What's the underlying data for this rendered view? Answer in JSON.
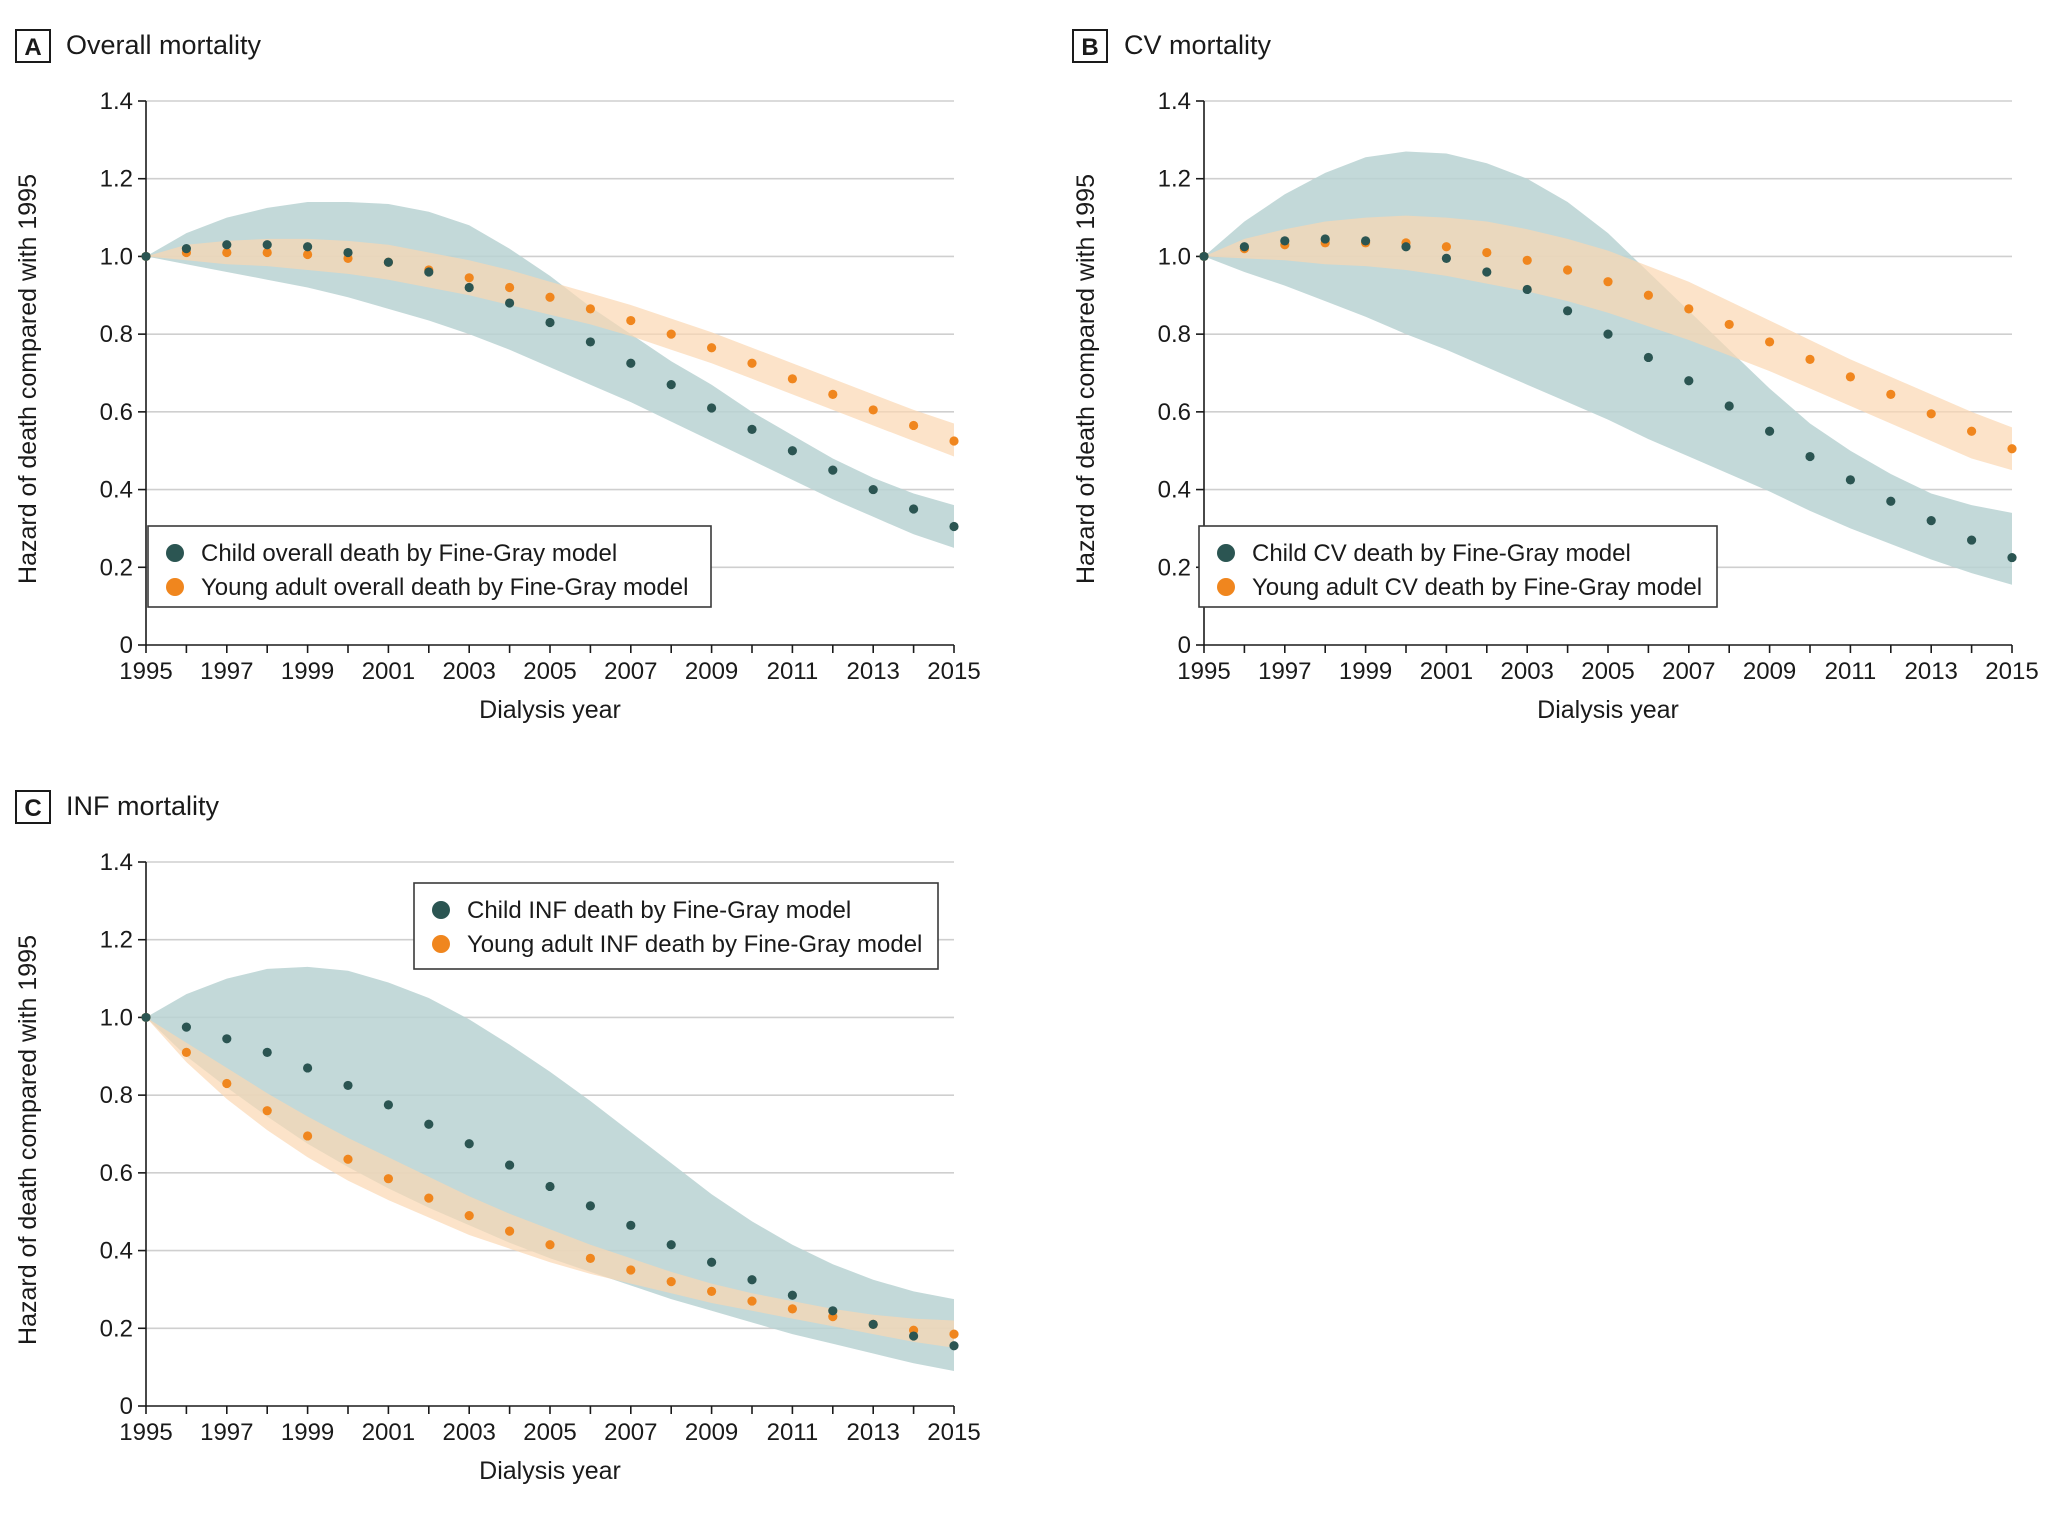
{
  "colors": {
    "child": "#2b5552",
    "child_band": "#b9d2d2",
    "young_adult": "#f0861e",
    "young_adult_band": "#fbd7b2"
  },
  "chart_data": [
    {
      "type": "scatter",
      "panel_label": "A",
      "title": "Overall mortality",
      "xlabel": "Dialysis year",
      "ylabel": "Hazard of death compared with 1995",
      "xlim": [
        1995,
        2015
      ],
      "ylim": [
        0,
        1.4
      ],
      "xticks": [
        1995,
        1997,
        1999,
        2001,
        2003,
        2005,
        2007,
        2009,
        2011,
        2013,
        2015
      ],
      "yticks": [
        0,
        0.2,
        0.4,
        0.6,
        0.8,
        1.0,
        1.2,
        1.4
      ],
      "ytick_labels": [
        "0",
        "0.2",
        "0.4",
        "0.6",
        "0.8",
        "1.0",
        "1.2",
        "1.4"
      ],
      "legend_position": "bottom-left",
      "x": [
        1995,
        1996,
        1997,
        1998,
        1999,
        2000,
        2001,
        2002,
        2003,
        2004,
        2005,
        2006,
        2007,
        2008,
        2009,
        2010,
        2011,
        2012,
        2013,
        2014,
        2015
      ],
      "series": [
        {
          "name": "Child overall death by Fine-Gray model",
          "color_key": "child",
          "values": [
            1.0,
            1.02,
            1.03,
            1.03,
            1.025,
            1.01,
            0.985,
            0.96,
            0.92,
            0.88,
            0.83,
            0.78,
            0.725,
            0.67,
            0.61,
            0.555,
            0.5,
            0.45,
            0.4,
            0.35,
            0.305
          ],
          "ci_upper": [
            1.0,
            1.06,
            1.1,
            1.125,
            1.14,
            1.14,
            1.135,
            1.115,
            1.08,
            1.02,
            0.95,
            0.87,
            0.8,
            0.73,
            0.67,
            0.6,
            0.54,
            0.48,
            0.43,
            0.39,
            0.36
          ],
          "ci_lower": [
            1.0,
            0.98,
            0.96,
            0.94,
            0.92,
            0.895,
            0.865,
            0.835,
            0.8,
            0.76,
            0.715,
            0.67,
            0.625,
            0.575,
            0.525,
            0.475,
            0.425,
            0.375,
            0.33,
            0.285,
            0.25
          ]
        },
        {
          "name": "Young adult overall death by Fine-Gray model",
          "color_key": "young_adult",
          "values": [
            1.0,
            1.01,
            1.01,
            1.01,
            1.005,
            0.995,
            0.985,
            0.965,
            0.945,
            0.92,
            0.895,
            0.865,
            0.835,
            0.8,
            0.765,
            0.725,
            0.685,
            0.645,
            0.605,
            0.565,
            0.525
          ],
          "ci_upper": [
            1.0,
            1.03,
            1.04,
            1.045,
            1.045,
            1.04,
            1.03,
            1.01,
            0.99,
            0.965,
            0.935,
            0.905,
            0.875,
            0.84,
            0.805,
            0.765,
            0.725,
            0.685,
            0.645,
            0.605,
            0.57
          ],
          "ci_lower": [
            1.0,
            0.99,
            0.98,
            0.975,
            0.965,
            0.955,
            0.94,
            0.92,
            0.9,
            0.875,
            0.85,
            0.825,
            0.795,
            0.76,
            0.725,
            0.685,
            0.645,
            0.605,
            0.565,
            0.525,
            0.485
          ]
        }
      ]
    },
    {
      "type": "scatter",
      "panel_label": "B",
      "title": "CV mortality",
      "xlabel": "Dialysis year",
      "ylabel": "Hazard of death compared with 1995",
      "xlim": [
        1995,
        2015
      ],
      "ylim": [
        0,
        1.4
      ],
      "xticks": [
        1995,
        1997,
        1999,
        2001,
        2003,
        2005,
        2007,
        2009,
        2011,
        2013,
        2015
      ],
      "yticks": [
        0,
        0.2,
        0.4,
        0.6,
        0.8,
        1.0,
        1.2,
        1.4
      ],
      "ytick_labels": [
        "0",
        "0.2",
        "0.4",
        "0.6",
        "0.8",
        "1.0",
        "1.2",
        "1.4"
      ],
      "legend_position": "bottom-left",
      "x": [
        1995,
        1996,
        1997,
        1998,
        1999,
        2000,
        2001,
        2002,
        2003,
        2004,
        2005,
        2006,
        2007,
        2008,
        2009,
        2010,
        2011,
        2012,
        2013,
        2014,
        2015
      ],
      "series": [
        {
          "name": "Child CV death by Fine-Gray model",
          "color_key": "child",
          "values": [
            1.0,
            1.025,
            1.04,
            1.045,
            1.04,
            1.025,
            0.995,
            0.96,
            0.915,
            0.86,
            0.8,
            0.74,
            0.68,
            0.615,
            0.55,
            0.485,
            0.425,
            0.37,
            0.32,
            0.27,
            0.225
          ],
          "ci_upper": [
            1.0,
            1.09,
            1.16,
            1.215,
            1.255,
            1.27,
            1.265,
            1.24,
            1.2,
            1.14,
            1.06,
            0.96,
            0.86,
            0.76,
            0.66,
            0.57,
            0.5,
            0.44,
            0.39,
            0.36,
            0.34
          ],
          "ci_lower": [
            1.0,
            0.96,
            0.925,
            0.885,
            0.845,
            0.8,
            0.76,
            0.715,
            0.67,
            0.625,
            0.58,
            0.53,
            0.485,
            0.44,
            0.395,
            0.345,
            0.3,
            0.26,
            0.22,
            0.185,
            0.155
          ]
        },
        {
          "name": "Young adult CV death by Fine-Gray model",
          "color_key": "young_adult",
          "values": [
            1.0,
            1.02,
            1.03,
            1.035,
            1.035,
            1.035,
            1.025,
            1.01,
            0.99,
            0.965,
            0.935,
            0.9,
            0.865,
            0.825,
            0.78,
            0.735,
            0.69,
            0.645,
            0.595,
            0.55,
            0.505
          ],
          "ci_upper": [
            1.0,
            1.045,
            1.07,
            1.09,
            1.1,
            1.105,
            1.1,
            1.09,
            1.07,
            1.045,
            1.015,
            0.975,
            0.935,
            0.885,
            0.835,
            0.785,
            0.735,
            0.69,
            0.645,
            0.6,
            0.56
          ],
          "ci_lower": [
            1.0,
            0.995,
            0.99,
            0.98,
            0.975,
            0.965,
            0.95,
            0.93,
            0.91,
            0.885,
            0.855,
            0.82,
            0.785,
            0.745,
            0.705,
            0.66,
            0.615,
            0.57,
            0.525,
            0.48,
            0.45
          ]
        }
      ]
    },
    {
      "type": "scatter",
      "panel_label": "C",
      "title": "INF mortality",
      "xlabel": "Dialysis year",
      "ylabel": "Hazard of death compared with 1995",
      "xlim": [
        1995,
        2015
      ],
      "ylim": [
        0,
        1.4
      ],
      "xticks": [
        1995,
        1997,
        1999,
        2001,
        2003,
        2005,
        2007,
        2009,
        2011,
        2013,
        2015
      ],
      "yticks": [
        0,
        0.2,
        0.4,
        0.6,
        0.8,
        1.0,
        1.2,
        1.4
      ],
      "ytick_labels": [
        "0",
        "0.2",
        "0.4",
        "0.6",
        "0.8",
        "1.0",
        "1.2",
        "1.4"
      ],
      "legend_position": "top-right",
      "x": [
        1995,
        1996,
        1997,
        1998,
        1999,
        2000,
        2001,
        2002,
        2003,
        2004,
        2005,
        2006,
        2007,
        2008,
        2009,
        2010,
        2011,
        2012,
        2013,
        2014,
        2015
      ],
      "series": [
        {
          "name": "Child INF death by Fine-Gray model",
          "color_key": "child",
          "values": [
            1.0,
            0.975,
            0.945,
            0.91,
            0.87,
            0.825,
            0.775,
            0.725,
            0.675,
            0.62,
            0.565,
            0.515,
            0.465,
            0.415,
            0.37,
            0.325,
            0.285,
            0.245,
            0.21,
            0.18,
            0.155
          ],
          "ci_upper": [
            1.0,
            1.06,
            1.1,
            1.125,
            1.13,
            1.12,
            1.09,
            1.05,
            0.995,
            0.93,
            0.86,
            0.785,
            0.705,
            0.625,
            0.545,
            0.475,
            0.415,
            0.365,
            0.325,
            0.295,
            0.275
          ],
          "ci_lower": [
            1.0,
            0.9,
            0.82,
            0.745,
            0.675,
            0.615,
            0.56,
            0.51,
            0.465,
            0.42,
            0.38,
            0.345,
            0.31,
            0.275,
            0.245,
            0.215,
            0.185,
            0.16,
            0.135,
            0.11,
            0.09
          ]
        },
        {
          "name": "Young adult INF death by Fine-Gray model",
          "color_key": "young_adult",
          "values": [
            1.0,
            0.91,
            0.83,
            0.76,
            0.695,
            0.635,
            0.585,
            0.535,
            0.49,
            0.45,
            0.415,
            0.38,
            0.35,
            0.32,
            0.295,
            0.27,
            0.25,
            0.23,
            0.21,
            0.195,
            0.185
          ],
          "ci_upper": [
            1.0,
            0.935,
            0.87,
            0.805,
            0.745,
            0.69,
            0.64,
            0.59,
            0.54,
            0.495,
            0.455,
            0.415,
            0.38,
            0.345,
            0.315,
            0.29,
            0.27,
            0.25,
            0.235,
            0.225,
            0.22
          ],
          "ci_lower": [
            1.0,
            0.885,
            0.79,
            0.71,
            0.64,
            0.58,
            0.53,
            0.485,
            0.44,
            0.405,
            0.37,
            0.34,
            0.315,
            0.29,
            0.265,
            0.245,
            0.225,
            0.205,
            0.185,
            0.165,
            0.15
          ]
        }
      ]
    }
  ]
}
